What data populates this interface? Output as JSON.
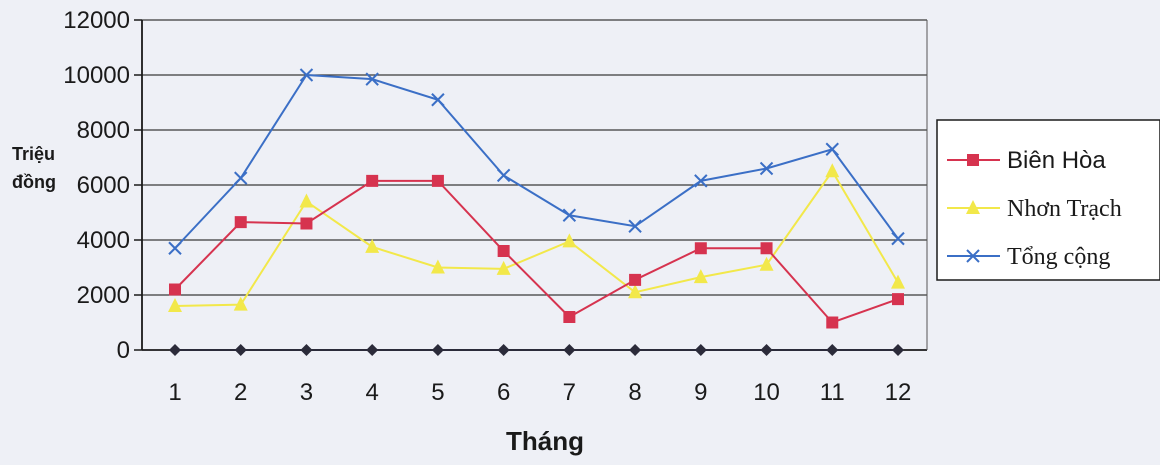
{
  "chart_data": {
    "type": "line",
    "categories": [
      "1",
      "2",
      "3",
      "4",
      "5",
      "6",
      "7",
      "8",
      "9",
      "10",
      "11",
      "12"
    ],
    "xlabel": "Tháng",
    "ylabel": [
      "Triệu",
      "đồng"
    ],
    "ylim": [
      0,
      12000
    ],
    "yticks": [
      "0",
      "2000",
      "4000",
      "6000",
      "8000",
      "10000",
      "12000"
    ],
    "grid": true,
    "legend_position": "right",
    "series": [
      {
        "name": "Biên Hòa",
        "color": "#d6334f",
        "marker": "square",
        "values": [
          2200,
          4650,
          4600,
          6150,
          6150,
          3600,
          1200,
          2550,
          3700,
          3700,
          1000,
          1850
        ]
      },
      {
        "name": "Nhơn Trạch",
        "color": "#f2e84a",
        "marker": "triangle",
        "values": [
          1600,
          1650,
          5400,
          3750,
          3000,
          2950,
          3950,
          2100,
          2650,
          3100,
          6500,
          2450
        ]
      },
      {
        "name": "Tổng cộng",
        "color": "#3b6fc6",
        "marker": "x",
        "values": [
          3700,
          6250,
          10000,
          9850,
          9100,
          6350,
          4900,
          4500,
          6150,
          6600,
          7300,
          4050
        ]
      },
      {
        "name": "",
        "color": "#2b2b3a",
        "marker": "diamond",
        "values": [
          0,
          0,
          0,
          0,
          0,
          0,
          0,
          0,
          0,
          0,
          0,
          0
        ]
      }
    ]
  }
}
